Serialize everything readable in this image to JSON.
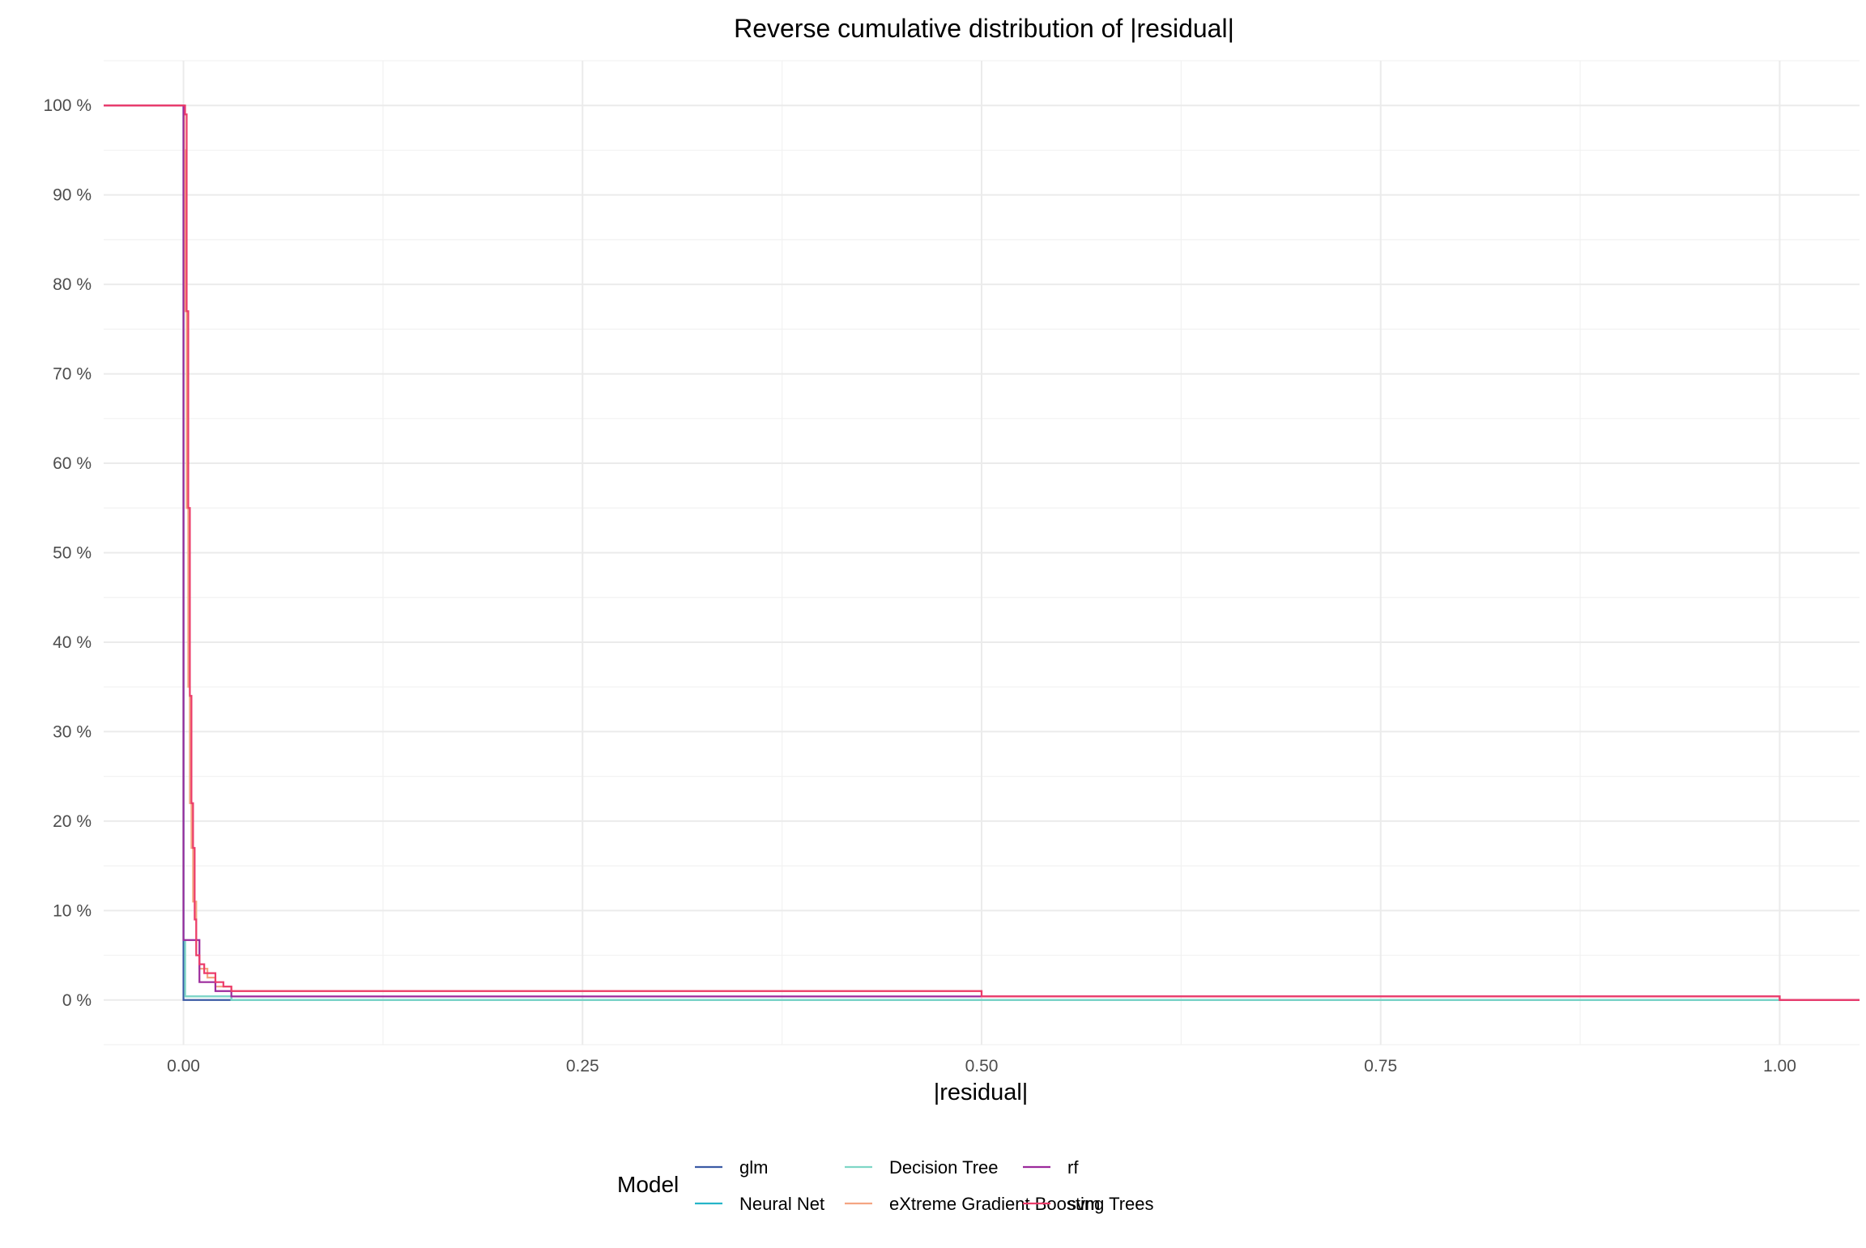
{
  "chart_data": {
    "type": "line",
    "step": true,
    "title": "Reverse cumulative distribution of |residual|",
    "xlabel": "|residual|",
    "ylabel": "",
    "xlim": [
      -0.05,
      1.05
    ],
    "ylim": [
      -0.05,
      1.05
    ],
    "x_ticks": [
      0,
      0.25,
      0.5,
      0.75,
      1.0
    ],
    "x_tick_labels": [
      "0.00",
      "0.25",
      "0.50",
      "0.75",
      "1.00"
    ],
    "y_ticks": [
      0,
      0.1,
      0.2,
      0.3,
      0.4,
      0.5,
      0.6,
      0.7,
      0.8,
      0.9,
      1.0
    ],
    "y_tick_labels": [
      "0 %",
      "10 %",
      "20 %",
      "30 %",
      "40 %",
      "50 %",
      "60 %",
      "70 %",
      "80 %",
      "90 %",
      "100 %"
    ],
    "grid": true,
    "legend_position": "bottom",
    "legend_title": "Model",
    "series": [
      {
        "name": "glm",
        "color": "#3b5ba5",
        "points": [
          [
            -0.05,
            1.0
          ],
          [
            0.0,
            1.0
          ],
          [
            0.0,
            0.0
          ],
          [
            1.05,
            0.0
          ]
        ]
      },
      {
        "name": "Neural Net",
        "color": "#26b5c9",
        "points": [
          [
            -0.05,
            1.0
          ],
          [
            0.0,
            1.0
          ],
          [
            0.0,
            0.067
          ],
          [
            0.001,
            0.067
          ],
          [
            0.001,
            0.004
          ],
          [
            0.03,
            0.004
          ],
          [
            0.03,
            0.0
          ],
          [
            1.05,
            0.0
          ]
        ]
      },
      {
        "name": "Decision Tree",
        "color": "#7fd6c6",
        "points": [
          [
            -0.05,
            1.0
          ],
          [
            0.0,
            1.0
          ],
          [
            0.0,
            0.067
          ],
          [
            0.001,
            0.067
          ],
          [
            0.001,
            0.004
          ],
          [
            0.03,
            0.004
          ],
          [
            0.03,
            0.0
          ],
          [
            1.05,
            0.0
          ]
        ]
      },
      {
        "name": "eXtreme Gradient Boosting Trees",
        "color": "#f4a582",
        "points": [
          [
            -0.05,
            1.0
          ],
          [
            0.0005,
            1.0
          ],
          [
            0.0005,
            0.95
          ],
          [
            0.001,
            0.95
          ],
          [
            0.001,
            0.77
          ],
          [
            0.002,
            0.77
          ],
          [
            0.002,
            0.55
          ],
          [
            0.003,
            0.55
          ],
          [
            0.003,
            0.35
          ],
          [
            0.004,
            0.35
          ],
          [
            0.004,
            0.22
          ],
          [
            0.005,
            0.22
          ],
          [
            0.005,
            0.17
          ],
          [
            0.006,
            0.17
          ],
          [
            0.006,
            0.11
          ],
          [
            0.008,
            0.11
          ],
          [
            0.008,
            0.05
          ],
          [
            0.01,
            0.05
          ],
          [
            0.01,
            0.035
          ],
          [
            0.015,
            0.035
          ],
          [
            0.015,
            0.025
          ],
          [
            0.02,
            0.025
          ],
          [
            0.02,
            0.015
          ],
          [
            0.03,
            0.015
          ],
          [
            0.03,
            0.01
          ],
          [
            0.5,
            0.01
          ],
          [
            0.5,
            0.004
          ],
          [
            1.0,
            0.004
          ],
          [
            1.0,
            0.0
          ],
          [
            1.05,
            0.0
          ]
        ]
      },
      {
        "name": "rf",
        "color": "#9c2a9c",
        "points": [
          [
            -0.05,
            1.0
          ],
          [
            0.0,
            1.0
          ],
          [
            0.0,
            0.067
          ],
          [
            0.01,
            0.067
          ],
          [
            0.01,
            0.02
          ],
          [
            0.02,
            0.02
          ],
          [
            0.02,
            0.01
          ],
          [
            0.03,
            0.01
          ],
          [
            0.03,
            0.004
          ],
          [
            0.5,
            0.004
          ],
          [
            0.5,
            0.004
          ],
          [
            1.0,
            0.004
          ],
          [
            1.0,
            0.0
          ],
          [
            1.05,
            0.0
          ]
        ]
      },
      {
        "name": "svm",
        "color": "#ec3c6a",
        "points": [
          [
            -0.05,
            1.0
          ],
          [
            0.001,
            1.0
          ],
          [
            0.001,
            0.99
          ],
          [
            0.002,
            0.99
          ],
          [
            0.002,
            0.77
          ],
          [
            0.003,
            0.77
          ],
          [
            0.003,
            0.55
          ],
          [
            0.004,
            0.55
          ],
          [
            0.004,
            0.34
          ],
          [
            0.005,
            0.34
          ],
          [
            0.005,
            0.22
          ],
          [
            0.006,
            0.22
          ],
          [
            0.006,
            0.17
          ],
          [
            0.007,
            0.17
          ],
          [
            0.007,
            0.09
          ],
          [
            0.008,
            0.09
          ],
          [
            0.008,
            0.05
          ],
          [
            0.01,
            0.05
          ],
          [
            0.01,
            0.04
          ],
          [
            0.013,
            0.04
          ],
          [
            0.013,
            0.03
          ],
          [
            0.02,
            0.03
          ],
          [
            0.02,
            0.02
          ],
          [
            0.025,
            0.02
          ],
          [
            0.025,
            0.015
          ],
          [
            0.03,
            0.015
          ],
          [
            0.03,
            0.01
          ],
          [
            0.5,
            0.01
          ],
          [
            0.5,
            0.004
          ],
          [
            1.0,
            0.004
          ],
          [
            1.0,
            0.0
          ],
          [
            1.05,
            0.0
          ]
        ]
      }
    ]
  }
}
